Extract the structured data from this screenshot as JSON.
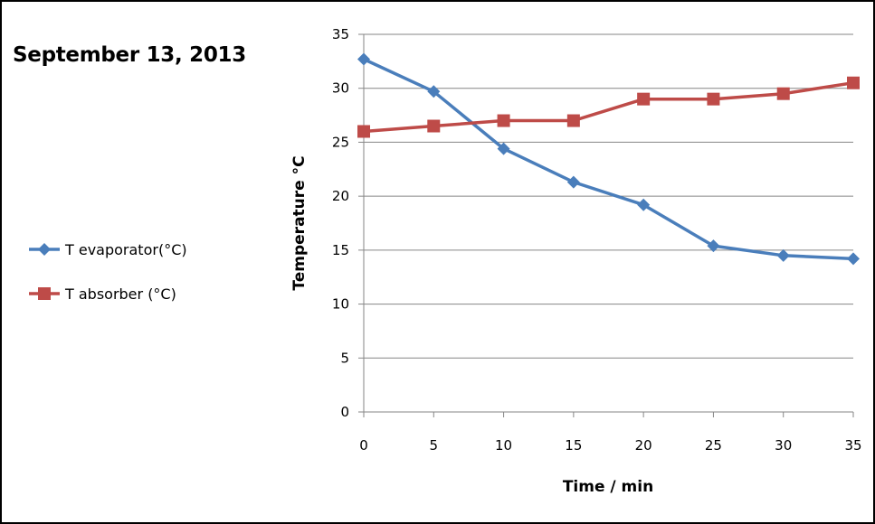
{
  "chart_title": "September 13, 2013",
  "chart_data": {
    "type": "line",
    "title": "September 13, 2013",
    "xlabel": "Time / min",
    "ylabel": "Temperature °C",
    "x": [
      0,
      5,
      10,
      15,
      20,
      25,
      30,
      35
    ],
    "xticks": [
      "0",
      "5",
      "10",
      "15",
      "20",
      "25",
      "30",
      "35"
    ],
    "yticks": [
      "0",
      "5",
      "10",
      "15",
      "20",
      "25",
      "30",
      "35"
    ],
    "xlim": [
      0,
      35
    ],
    "ylim": [
      0,
      35
    ],
    "grid": "horizontal",
    "legend_position": "left",
    "series": [
      {
        "name": "T evaporator(°C)",
        "marker": "diamond",
        "color": "#4A7EBB",
        "values": [
          32.7,
          29.7,
          24.4,
          21.3,
          19.2,
          15.4,
          14.5,
          14.2
        ]
      },
      {
        "name": "T absorber (°C)",
        "marker": "square",
        "color": "#BE4B48",
        "values": [
          26.0,
          26.5,
          27.0,
          27.0,
          29.0,
          29.0,
          29.5,
          30.5
        ]
      }
    ]
  }
}
